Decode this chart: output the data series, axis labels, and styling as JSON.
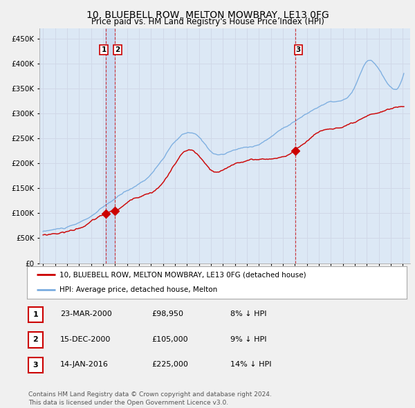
{
  "title": "10, BLUEBELL ROW, MELTON MOWBRAY, LE13 0FG",
  "subtitle": "Price paid vs. HM Land Registry's House Price Index (HPI)",
  "title_fontsize": 10,
  "subtitle_fontsize": 8.5,
  "ylim": [
    0,
    470000
  ],
  "yticks": [
    0,
    50000,
    100000,
    150000,
    200000,
    250000,
    300000,
    350000,
    400000,
    450000
  ],
  "x_start_year": 1995,
  "x_end_year": 2025,
  "red_line_color": "#cc0000",
  "blue_line_color": "#7aade0",
  "grid_color": "#d0d8e8",
  "background_color": "#dce8f5",
  "fig_bg_color": "#f0f0f0",
  "vline_color": "#cc0000",
  "vshade_color": "#b8ccee",
  "vshade_alpha": 0.45,
  "marker_color": "#cc0000",
  "transaction_dates": [
    2000.22,
    2000.96,
    2016.04
  ],
  "transaction_prices": [
    98950,
    105000,
    225000
  ],
  "transaction_labels": [
    "1",
    "2",
    "3"
  ],
  "legend_line1": "10, BLUEBELL ROW, MELTON MOWBRAY, LE13 0FG (detached house)",
  "legend_line2": "HPI: Average price, detached house, Melton",
  "table_rows": [
    [
      "1",
      "23-MAR-2000",
      "£98,950",
      "8% ↓ HPI"
    ],
    [
      "2",
      "15-DEC-2000",
      "£105,000",
      "9% ↓ HPI"
    ],
    [
      "3",
      "14-JAN-2016",
      "£225,000",
      "14% ↓ HPI"
    ]
  ],
  "footer_text": "Contains HM Land Registry data © Crown copyright and database right 2024.\nThis data is licensed under the Open Government Licence v3.0.",
  "box_color": "#cc0000"
}
